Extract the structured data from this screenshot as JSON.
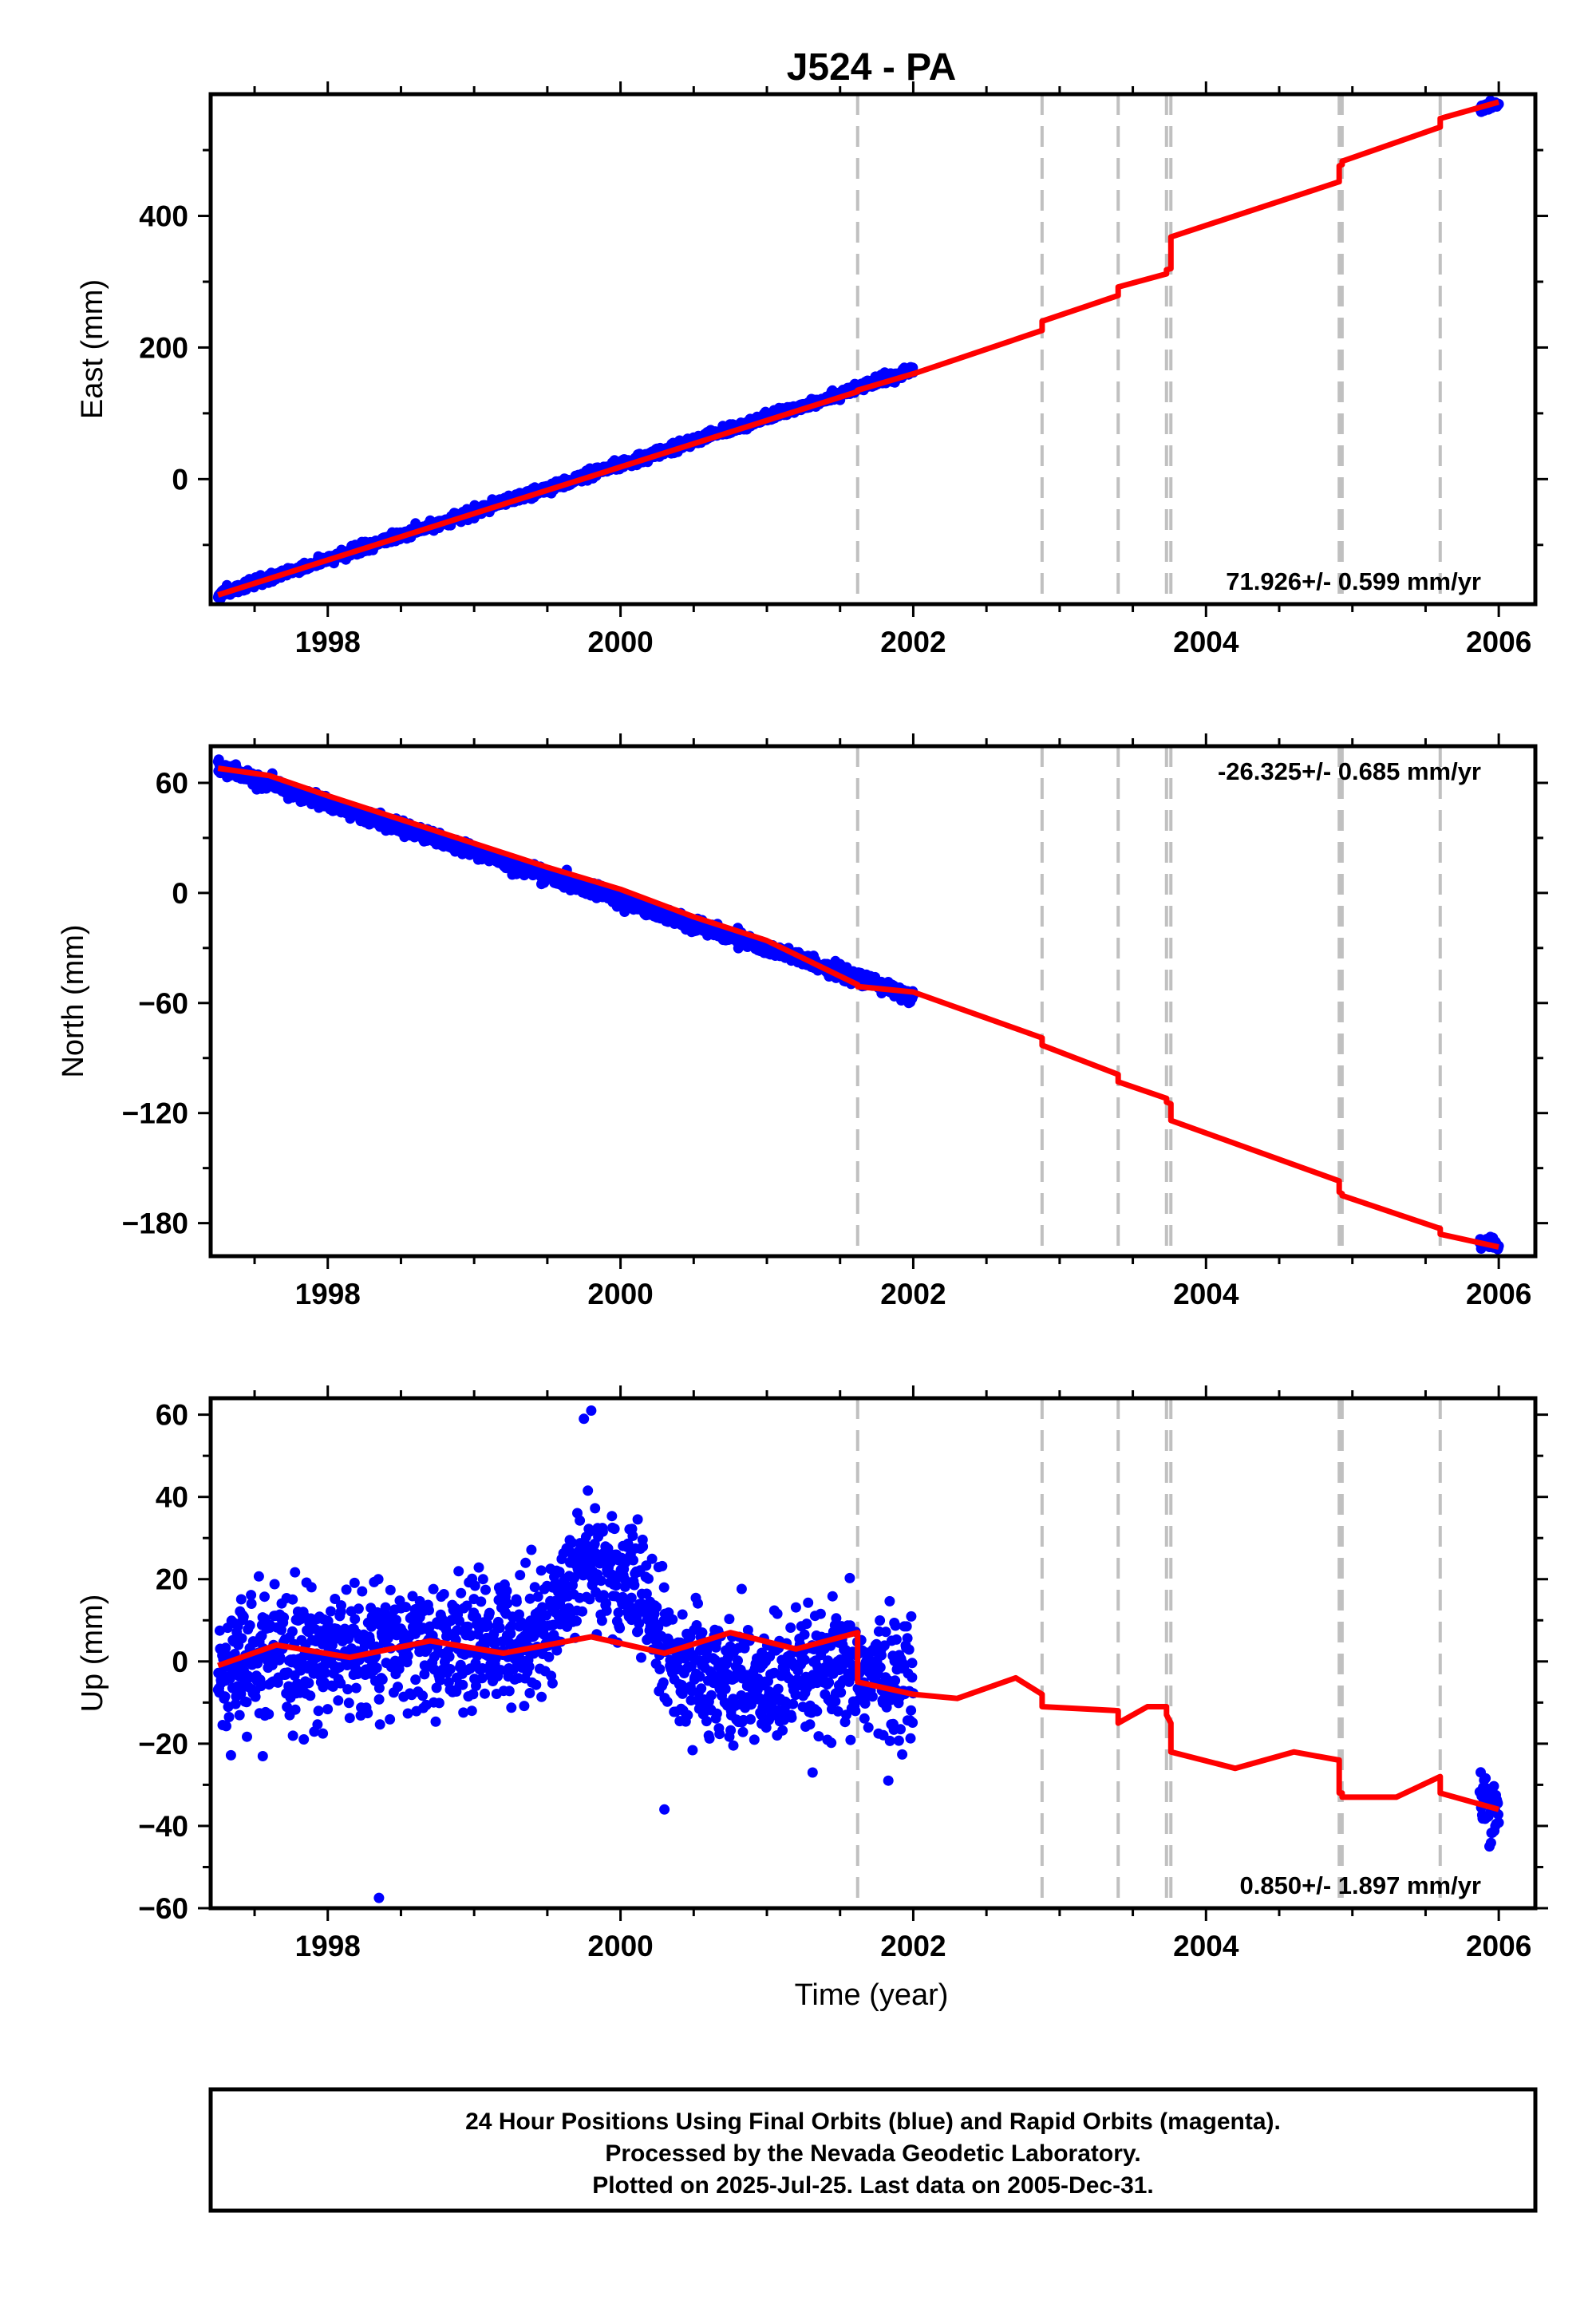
{
  "chart_data": {
    "type": "scatter",
    "title": "J524 - PA",
    "xlabel": "Time (year)",
    "xlim": [
      1997.2,
      2006.25
    ],
    "xticks": [
      1998,
      2000,
      2002,
      2004,
      2006
    ],
    "x_minor_step": 0.5,
    "grid": false,
    "legend": "none",
    "colors": {
      "observations": "#0000ff",
      "model": "#ff0000",
      "events": "#c0c0c0"
    },
    "event_lines": [
      2001.62,
      2002.88,
      2003.4,
      2003.73,
      2003.76,
      2004.91,
      2004.93,
      2005.6
    ],
    "panels": [
      {
        "name": "east",
        "ylabel": "East (mm)",
        "ylim": [
          -190,
          585
        ],
        "yticks": [
          0,
          200,
          400
        ],
        "rate_text": "71.926+/- 0.599 mm/yr",
        "rate_position": "bottom-right",
        "observations": {
          "start": 1997.25,
          "end": 2002.0,
          "intercept": -176.0,
          "slope": 71.926,
          "noise": 3.5,
          "late": {
            "start": 2005.87,
            "end": 2006.0,
            "y_at_start": 563,
            "y_at_end": 570,
            "noise": 3
          }
        },
        "model": [
          [
            1997.25,
            -176
          ],
          [
            2001.62,
            133
          ],
          [
            2001.62,
            135
          ],
          [
            2002.0,
            160
          ],
          [
            2002.88,
            226
          ],
          [
            2002.88,
            240
          ],
          [
            2003.4,
            279
          ],
          [
            2003.4,
            292
          ],
          [
            2003.73,
            312
          ],
          [
            2003.73,
            318
          ],
          [
            2003.76,
            320
          ],
          [
            2003.76,
            368
          ],
          [
            2004.91,
            452
          ],
          [
            2004.91,
            476
          ],
          [
            2004.93,
            478
          ],
          [
            2004.93,
            483
          ],
          [
            2005.6,
            535
          ],
          [
            2005.6,
            548
          ],
          [
            2006.0,
            573
          ]
        ]
      },
      {
        "name": "north",
        "ylabel": "North (mm)",
        "ylim": [
          -198,
          80
        ],
        "yticks": [
          -180,
          -120,
          -60,
          0,
          60
        ],
        "rate_text": "-26.325+/- 0.685 mm/yr",
        "rate_position": "top-right",
        "observations": {
          "start": 1997.25,
          "end": 2002.0,
          "intercept": 68.5,
          "slope": -26.325,
          "noise": 1.8,
          "late": {
            "start": 2005.87,
            "end": 2006.0,
            "y_at_start": -190,
            "y_at_end": -193,
            "noise": 1.5
          }
        },
        "model": [
          [
            1997.25,
            68
          ],
          [
            1997.6,
            64
          ],
          [
            1998.0,
            53
          ],
          [
            1998.5,
            40
          ],
          [
            1999.0,
            27
          ],
          [
            1999.5,
            14
          ],
          [
            2000.0,
            2
          ],
          [
            2000.5,
            -13
          ],
          [
            2001.0,
            -26
          ],
          [
            2001.62,
            -50
          ],
          [
            2001.62,
            -51
          ],
          [
            2002.0,
            -54
          ],
          [
            2002.88,
            -79
          ],
          [
            2002.88,
            -83
          ],
          [
            2003.4,
            -99
          ],
          [
            2003.4,
            -103
          ],
          [
            2003.73,
            -112
          ],
          [
            2003.73,
            -114
          ],
          [
            2003.76,
            -115
          ],
          [
            2003.76,
            -124
          ],
          [
            2004.91,
            -157
          ],
          [
            2004.91,
            -163
          ],
          [
            2004.93,
            -164
          ],
          [
            2004.93,
            -165
          ],
          [
            2005.6,
            -183
          ],
          [
            2005.6,
            -186
          ],
          [
            2006.0,
            -193
          ]
        ]
      },
      {
        "name": "up",
        "ylabel": "Up (mm)",
        "ylim": [
          -60,
          64
        ],
        "yticks": [
          -60,
          -40,
          -20,
          0,
          20,
          40,
          60
        ],
        "rate_text": "0.850+/- 1.897 mm/yr",
        "rate_position": "bottom-right",
        "observations": {
          "start": 1997.25,
          "end": 2002.0,
          "noise": 7.5,
          "trend": [
            [
              1997.25,
              -2
            ],
            [
              1998.0,
              2
            ],
            [
              1999.0,
              4
            ],
            [
              1999.5,
              8
            ],
            [
              1999.75,
              26
            ],
            [
              2000.1,
              18
            ],
            [
              2000.4,
              -3
            ],
            [
              2001.0,
              -6
            ],
            [
              2001.62,
              -3
            ],
            [
              2002.0,
              -5
            ]
          ],
          "outliers": [
            [
              1998.35,
              -57.5
            ],
            [
              1999.8,
              61
            ],
            [
              1999.75,
              59
            ],
            [
              2000.3,
              -36
            ]
          ],
          "late": {
            "start": 2005.87,
            "end": 2006.0,
            "y_at_start": -34,
            "y_at_end": -35,
            "noise": 4
          }
        },
        "model": [
          [
            1997.25,
            -1
          ],
          [
            1997.65,
            4
          ],
          [
            1998.15,
            1
          ],
          [
            1998.7,
            5
          ],
          [
            1999.2,
            2
          ],
          [
            1999.8,
            6
          ],
          [
            2000.3,
            2
          ],
          [
            2000.75,
            7
          ],
          [
            2001.2,
            3
          ],
          [
            2001.62,
            7
          ],
          [
            2001.62,
            -5
          ],
          [
            2002.0,
            -8
          ],
          [
            2002.3,
            -9
          ],
          [
            2002.7,
            -4
          ],
          [
            2002.88,
            -8
          ],
          [
            2002.88,
            -11
          ],
          [
            2003.4,
            -12
          ],
          [
            2003.4,
            -15
          ],
          [
            2003.6,
            -11
          ],
          [
            2003.73,
            -11
          ],
          [
            2003.73,
            -13
          ],
          [
            2003.76,
            -15
          ],
          [
            2003.76,
            -22
          ],
          [
            2004.2,
            -26
          ],
          [
            2004.6,
            -22
          ],
          [
            2004.91,
            -24
          ],
          [
            2004.91,
            -32
          ],
          [
            2004.93,
            -32
          ],
          [
            2004.93,
            -33
          ],
          [
            2005.3,
            -33
          ],
          [
            2005.6,
            -28
          ],
          [
            2005.6,
            -32
          ],
          [
            2006.0,
            -36
          ]
        ]
      }
    ]
  },
  "footer": {
    "lines": [
      "24 Hour Positions Using Final Orbits (blue) and Rapid Orbits (magenta).",
      "Processed by the Nevada Geodetic Laboratory.",
      "Plotted on 2025-Jul-25. Last data on 2005-Dec-31."
    ]
  }
}
